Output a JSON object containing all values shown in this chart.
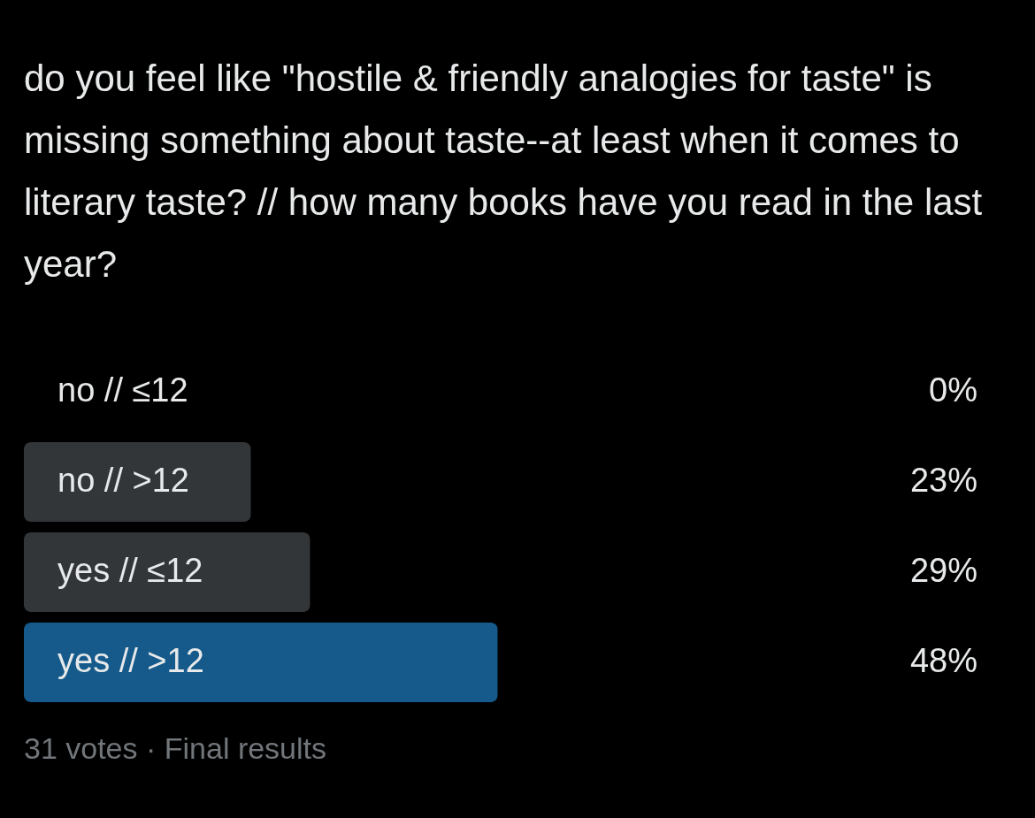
{
  "chart_data": {
    "type": "bar",
    "orientation": "horizontal",
    "title": "do you feel like \"hostile & friendly analogies for taste\" is missing something about taste--at least when it comes to literary taste? // how many books have you read in the last year?",
    "categories": [
      "no // ≤12",
      "no // >12",
      "yes // ≤12",
      "yes // >12"
    ],
    "values": [
      0,
      23,
      29,
      48
    ],
    "value_labels": [
      "0%",
      "23%",
      "29%",
      "48%"
    ],
    "colors": [
      "#333639",
      "#333639",
      "#333639",
      "#155a8a"
    ],
    "annotations": [
      "31 votes · Final results"
    ]
  }
}
